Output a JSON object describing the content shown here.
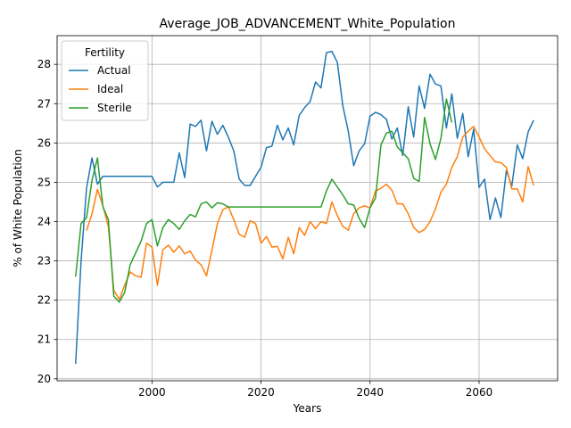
{
  "chart_data": {
    "type": "line",
    "title": "Average_JOB_ADVANCEMENT_White_Population",
    "xlabel": "Years",
    "ylabel": "% of White Population",
    "xlim": [
      1982.6,
      2074.4
    ],
    "ylim": [
      19.95,
      28.73
    ],
    "xticks": [
      2000,
      2020,
      2040,
      2060
    ],
    "yticks": [
      20,
      21,
      22,
      23,
      24,
      25,
      26,
      27,
      28
    ],
    "grid": true,
    "legend": {
      "title": "Fertility",
      "placement": "upper-left"
    },
    "series": [
      {
        "name": "Actual",
        "color": "#1f77b4",
        "x": [
          1986,
          1987,
          1988,
          1989,
          1990,
          1991,
          1992,
          1993,
          1994,
          1995,
          1996,
          1997,
          1998,
          1999,
          2000,
          2001,
          2002,
          2003,
          2004,
          2005,
          2006,
          2007,
          2008,
          2009,
          2010,
          2011,
          2012,
          2013,
          2014,
          2015,
          2016,
          2017,
          2018,
          2019,
          2020,
          2021,
          2022,
          2023,
          2024,
          2025,
          2026,
          2027,
          2028,
          2029,
          2030,
          2031,
          2032,
          2033,
          2034,
          2035,
          2036,
          2037,
          2038,
          2039,
          2040,
          2041,
          2042,
          2043,
          2044,
          2045,
          2046,
          2047,
          2048,
          2049,
          2050,
          2051,
          2052,
          2053,
          2054,
          2055,
          2056,
          2057,
          2058,
          2059,
          2060,
          2061,
          2062,
          2063,
          2064,
          2065,
          2066,
          2067,
          2068,
          2069,
          2070
        ],
        "y": [
          20.38,
          23.0,
          24.85,
          25.62,
          24.95,
          25.15,
          25.15,
          25.15,
          25.15,
          25.15,
          25.15,
          25.15,
          25.15,
          25.15,
          25.15,
          24.88,
          25.0,
          25.0,
          25.0,
          25.75,
          25.12,
          26.48,
          26.42,
          26.58,
          25.8,
          26.55,
          26.22,
          26.45,
          26.15,
          25.8,
          25.08,
          24.92,
          24.92,
          25.15,
          25.38,
          25.88,
          25.92,
          26.45,
          26.08,
          26.38,
          25.95,
          26.7,
          26.9,
          27.05,
          27.55,
          27.4,
          28.3,
          28.33,
          28.05,
          26.95,
          26.3,
          25.42,
          25.8,
          25.98,
          26.68,
          26.78,
          26.72,
          26.6,
          26.1,
          26.38,
          25.68,
          26.92,
          26.15,
          27.45,
          26.88,
          27.75,
          27.5,
          27.45,
          26.38,
          27.25,
          26.12,
          26.75,
          25.65,
          26.35,
          24.87,
          25.08,
          24.05,
          24.6,
          24.1,
          25.3,
          24.9,
          25.95,
          25.6,
          26.28,
          26.58
        ]
      },
      {
        "name": "Ideal",
        "color": "#ff7f0e",
        "x": [
          1988,
          1989,
          1990,
          1991,
          1992,
          1993,
          1994,
          1995,
          1996,
          1997,
          1998,
          1999,
          2000,
          2001,
          2002,
          2003,
          2004,
          2005,
          2006,
          2007,
          2008,
          2009,
          2010,
          2011,
          2012,
          2013,
          2014,
          2015,
          2016,
          2017,
          2018,
          2019,
          2020,
          2021,
          2022,
          2023,
          2024,
          2025,
          2026,
          2027,
          2028,
          2029,
          2030,
          2031,
          2032,
          2033,
          2034,
          2035,
          2036,
          2037,
          2038,
          2039,
          2040,
          2041,
          2042,
          2043,
          2044,
          2045,
          2046,
          2047,
          2048,
          2049,
          2050,
          2051,
          2052,
          2053,
          2054,
          2055,
          2056,
          2057,
          2058,
          2059,
          2060,
          2061,
          2062,
          2063,
          2064,
          2065,
          2066,
          2067,
          2068,
          2069,
          2070
        ],
        "y": [
          23.77,
          24.2,
          24.82,
          24.4,
          23.88,
          22.25,
          22.02,
          22.38,
          22.72,
          22.62,
          22.58,
          23.45,
          23.35,
          22.38,
          23.28,
          23.4,
          23.22,
          23.38,
          23.18,
          23.25,
          23.02,
          22.9,
          22.62,
          23.27,
          23.95,
          24.3,
          24.38,
          24.05,
          23.68,
          23.6,
          24.02,
          23.95,
          23.45,
          23.62,
          23.35,
          23.37,
          23.05,
          23.6,
          23.18,
          23.85,
          23.65,
          24.0,
          23.82,
          24.0,
          23.95,
          24.5,
          24.15,
          23.88,
          23.78,
          24.2,
          24.35,
          24.4,
          24.35,
          24.78,
          24.85,
          24.95,
          24.8,
          24.45,
          24.45,
          24.2,
          23.85,
          23.72,
          23.8,
          24.0,
          24.32,
          24.75,
          24.95,
          25.38,
          25.65,
          26.15,
          26.3,
          26.42,
          26.15,
          25.85,
          25.68,
          25.52,
          25.5,
          25.38,
          24.83,
          24.83,
          24.5,
          25.4,
          24.92
        ]
      },
      {
        "name": "Sterile",
        "color": "#2ca02c",
        "x": [
          1986,
          1987,
          1988,
          1989,
          1990,
          1991,
          1992,
          1993,
          1994,
          1995,
          1996,
          1997,
          1998,
          1999,
          2000,
          2001,
          2002,
          2003,
          2004,
          2005,
          2006,
          2007,
          2008,
          2009,
          2010,
          2011,
          2012,
          2013,
          2014,
          2015,
          2016,
          2017,
          2018,
          2019,
          2020,
          2021,
          2022,
          2023,
          2024,
          2025,
          2026,
          2027,
          2028,
          2029,
          2030,
          2031,
          2032,
          2033,
          2034,
          2035,
          2036,
          2037,
          2038,
          2039,
          2040,
          2041,
          2042,
          2043,
          2044,
          2045,
          2046,
          2047,
          2048,
          2049,
          2050,
          2051,
          2052,
          2053,
          2054,
          2055
        ],
        "y": [
          22.6,
          23.95,
          24.1,
          25.05,
          25.62,
          24.38,
          24.05,
          22.1,
          21.95,
          22.2,
          22.9,
          23.2,
          23.5,
          23.95,
          24.05,
          23.38,
          23.85,
          24.05,
          23.95,
          23.8,
          24.02,
          24.18,
          24.12,
          24.45,
          24.5,
          24.35,
          24.48,
          24.45,
          24.37,
          24.37,
          24.37,
          24.37,
          24.37,
          24.37,
          24.37,
          24.37,
          24.37,
          24.37,
          24.37,
          24.37,
          24.37,
          24.37,
          24.37,
          24.37,
          24.37,
          24.37,
          24.78,
          25.08,
          24.88,
          24.68,
          24.45,
          24.42,
          24.08,
          23.85,
          24.35,
          24.6,
          25.95,
          26.25,
          26.3,
          25.9,
          25.75,
          25.6,
          25.1,
          25.02,
          26.65,
          25.98,
          25.58,
          26.12,
          27.12,
          26.52
        ]
      }
    ]
  }
}
